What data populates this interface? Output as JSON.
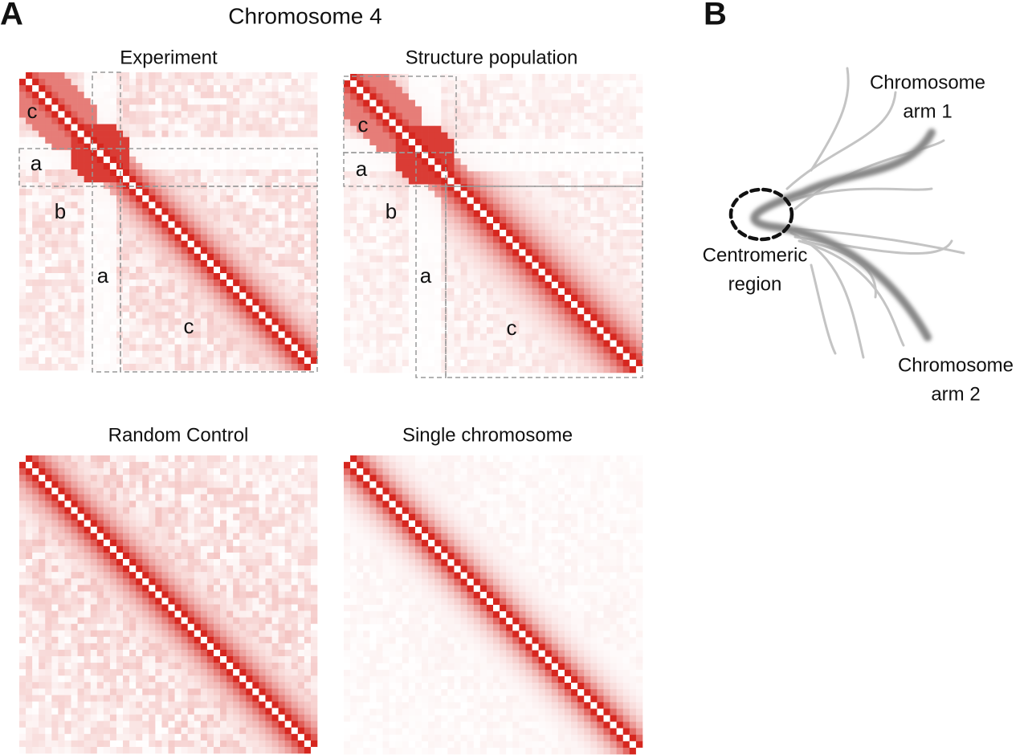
{
  "panel_labels": [
    "A",
    "B"
  ],
  "title": "Chromosome 4",
  "heatmaps": [
    {
      "title": "Experiment",
      "region_labels": [
        "c",
        "a",
        "b",
        "a",
        "c"
      ]
    },
    {
      "title": "Structure population",
      "region_labels": [
        "c",
        "a",
        "b",
        "a",
        "c"
      ]
    },
    {
      "title": "Random Control"
    },
    {
      "title": "Single chromosome"
    }
  ],
  "diagram": {
    "arm1": [
      "Chromosome",
      "arm 1"
    ],
    "centromere": [
      "Centromeric",
      "region"
    ],
    "arm2": [
      "Chromosome",
      "arm 2"
    ]
  }
}
